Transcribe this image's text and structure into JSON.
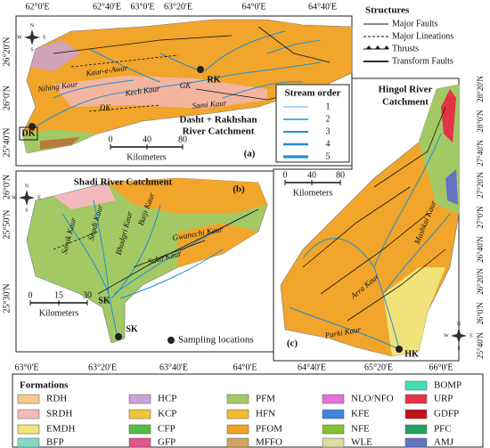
{
  "panel_a": {
    "title": [
      "Dasht + Rakhshan",
      "River Catchment"
    ],
    "label": "(a)",
    "lon": [
      "62°0'E",
      "62°40'E",
      "63°0'E",
      "63°20'E",
      "64°0'E",
      "64°40'E"
    ],
    "lat": [
      "26°20'N",
      "26°0'N",
      "25°40'N"
    ],
    "places": [
      "Kaur-e-Awar",
      "Nihing Kaur",
      "Kech Kaur",
      "GK",
      "Sami Kaur",
      "DK",
      "DK",
      "RK"
    ],
    "scale": [
      0,
      40,
      80
    ],
    "scale_unit": "Kilometers"
  },
  "structures": {
    "title": "Structures",
    "items": [
      "Major Faults",
      "Major Lineations",
      "Thrusts",
      "Transform Faults"
    ]
  },
  "stream_order": {
    "title": "Stream order",
    "items": [
      "1",
      "2",
      "3",
      "4",
      "5"
    ]
  },
  "panel_c": {
    "title": [
      "Hingol River",
      "Catchment"
    ],
    "label": "(c)",
    "lon": [
      "64°40'E",
      "65°20'E",
      "66°0'E"
    ],
    "lat": [
      "28°20'N",
      "28°0'N",
      "27°40'N",
      "27°20'N",
      "27°0'N",
      "26°40'N",
      "26°20'N",
      "26°0'N",
      "25°40'N"
    ],
    "places": [
      "Mashkai Kaur",
      "Arra Kaur",
      "Parki Kaur",
      "HK"
    ],
    "scale": [
      0,
      40,
      80
    ],
    "scale_unit": "Kilometers"
  },
  "panel_b": {
    "title": "Shadi River Catchment",
    "label": "(b)",
    "lon": [
      "63°0'E",
      "63°20'E",
      "63°40'E",
      "64°0'E"
    ],
    "lat": [
      "26°0'N",
      "25°50'N",
      "25°30'N"
    ],
    "places": [
      "Sarak Kaur",
      "Shadi Kaur",
      "Bhudgri Kaur",
      "Baiji Kaur",
      "Gwanechi Kaur",
      "Suko Kaur",
      "SK",
      "SK"
    ],
    "scale": [
      0,
      15,
      30
    ],
    "scale_unit": "Kilometers",
    "sampling": "Sampling locations"
  },
  "compass": [
    "N",
    "E",
    "S",
    "W"
  ],
  "formations": {
    "title": "Formations",
    "items": [
      {
        "code": "RDH",
        "color": "#f6c98e"
      },
      {
        "code": "SRDH",
        "color": "#f4b9bc"
      },
      {
        "code": "EMDH",
        "color": "#f2e27a"
      },
      {
        "code": "BFP",
        "color": "#86d9c4"
      },
      {
        "code": "HCP",
        "color": "#c9a3da"
      },
      {
        "code": "KCP",
        "color": "#efc53c"
      },
      {
        "code": "CFP",
        "color": "#52bf3f"
      },
      {
        "code": "GFP",
        "color": "#e0558a"
      },
      {
        "code": "PFM",
        "color": "#a3c964"
      },
      {
        "code": "HFN",
        "color": "#f2bb2e"
      },
      {
        "code": "PFOM",
        "color": "#f0a224"
      },
      {
        "code": "MFFO",
        "color": "#d3a463"
      },
      {
        "code": "NLO/NFO",
        "color": "#e273d6"
      },
      {
        "code": "KFE",
        "color": "#3f84e0"
      },
      {
        "code": "NFE",
        "color": "#83c232"
      },
      {
        "code": "WLE",
        "color": "#dcdca6"
      },
      {
        "code": "BOMP",
        "color": "#3fe0b3"
      },
      {
        "code": "URP",
        "color": "#e23446"
      },
      {
        "code": "GDFP",
        "color": "#c11419"
      },
      {
        "code": "PFC",
        "color": "#1fa262"
      },
      {
        "code": "AMJ",
        "color": "#6473c2"
      }
    ]
  }
}
